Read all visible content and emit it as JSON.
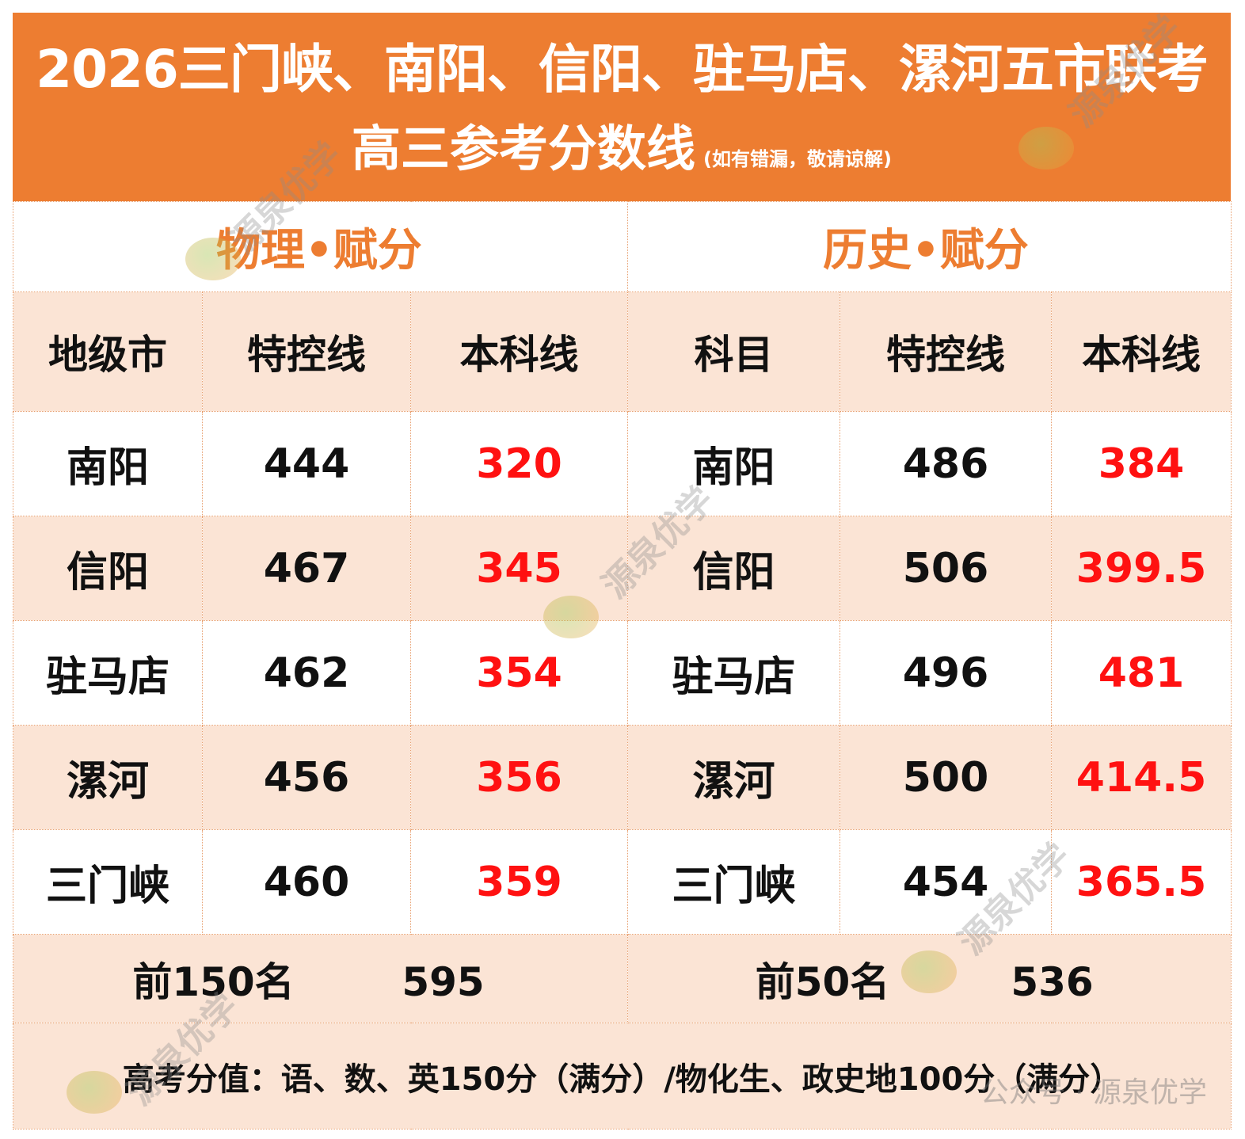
{
  "title": {
    "line1": "2026三门峡、南阳、信阳、驻马店、漯河五市联考",
    "line2": "高三参考分数线",
    "note": "(如有错漏，敬请谅解)"
  },
  "physics": {
    "section_title": "物理•赋分",
    "headers": [
      "地级市",
      "特控线",
      "本科线"
    ],
    "rows": [
      {
        "city": "南阳",
        "special": "444",
        "undergrad": "320"
      },
      {
        "city": "信阳",
        "special": "467",
        "undergrad": "345"
      },
      {
        "city": "驻马店",
        "special": "462",
        "undergrad": "354"
      },
      {
        "city": "漯河",
        "special": "456",
        "undergrad": "356"
      },
      {
        "city": "三门峡",
        "special": "460",
        "undergrad": "359"
      }
    ],
    "rank_label": "前150名",
    "rank_value": "595"
  },
  "history": {
    "section_title": "历史•赋分",
    "headers": [
      "科目",
      "特控线",
      "本科线"
    ],
    "rows": [
      {
        "city": "南阳",
        "special": "486",
        "undergrad": "384"
      },
      {
        "city": "信阳",
        "special": "506",
        "undergrad": "399.5"
      },
      {
        "city": "驻马店",
        "special": "496",
        "undergrad": "481"
      },
      {
        "city": "漯河",
        "special": "500",
        "undergrad": "414.5"
      },
      {
        "city": "三门峡",
        "special": "454",
        "undergrad": "365.5"
      }
    ],
    "rank_label": "前50名",
    "rank_value": "536"
  },
  "footnote": "高考分值：语、数、英150分（满分）/物化生、政史地100分（满分）",
  "watermarks": {
    "brand": "源泉优学",
    "footer": "公众号 · 源泉优学"
  },
  "colors": {
    "title_bg": "#ed7d31",
    "section_text": "#ed7d31",
    "band_bg": "#fbe4d5",
    "undergrad_text": "#ff1111"
  }
}
